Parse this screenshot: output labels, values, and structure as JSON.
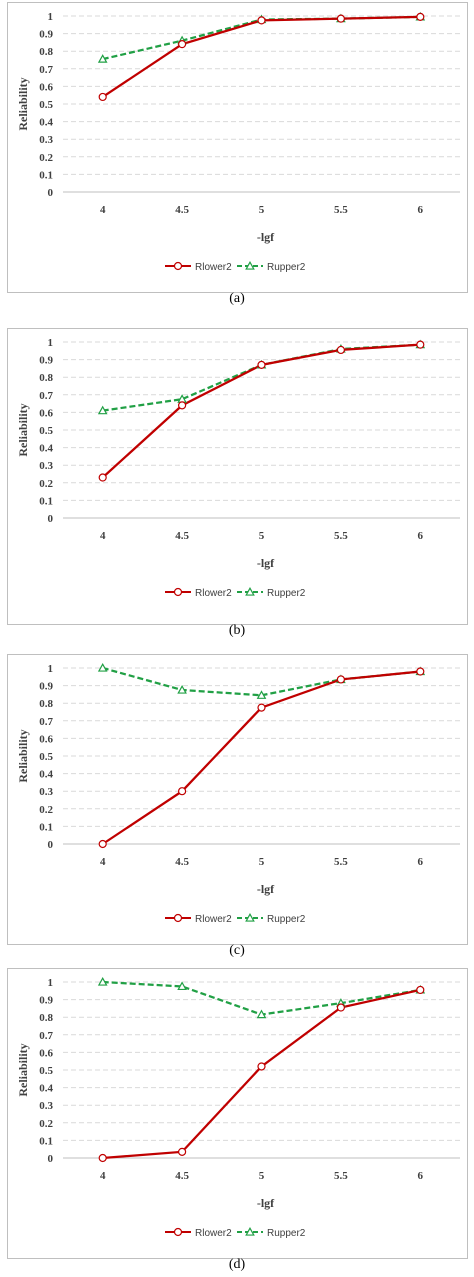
{
  "colors": {
    "rlower": "#c00000",
    "rupper": "#21a045",
    "grid": "#d9d9d9",
    "axis": "#bfbfbf",
    "text": "#404040"
  },
  "chart_data": [
    {
      "type": "line",
      "panel_label": "(a)",
      "xlabel": "-lgf",
      "ylabel": "Reliability",
      "categories": [
        "4",
        "4.5",
        "5",
        "5.5",
        "6"
      ],
      "yticks": [
        "0",
        "0.1",
        "0.2",
        "0.3",
        "0.4",
        "0.5",
        "0.6",
        "0.7",
        "0.8",
        "0.9",
        "1"
      ],
      "ylim": [
        0,
        1
      ],
      "grid": true,
      "legend_position": "bottom",
      "series": [
        {
          "name": "Rlower2",
          "values": [
            0.54,
            0.84,
            0.975,
            0.985,
            0.995
          ],
          "style": "solid",
          "marker": "circle"
        },
        {
          "name": "Rupper2",
          "values": [
            0.755,
            0.86,
            0.98,
            0.985,
            0.995
          ],
          "style": "dashed",
          "marker": "triangle"
        }
      ]
    },
    {
      "type": "line",
      "panel_label": "(b)",
      "xlabel": "-lgf",
      "ylabel": "Reliability",
      "categories": [
        "4",
        "4.5",
        "5",
        "5.5",
        "6"
      ],
      "yticks": [
        "0",
        "0.1",
        "0.2",
        "0.3",
        "0.4",
        "0.5",
        "0.6",
        "0.7",
        "0.8",
        "0.9",
        "1"
      ],
      "ylim": [
        0,
        1
      ],
      "grid": true,
      "legend_position": "bottom",
      "series": [
        {
          "name": "Rlower2",
          "values": [
            0.23,
            0.64,
            0.87,
            0.955,
            0.985
          ],
          "style": "solid",
          "marker": "circle"
        },
        {
          "name": "Rupper2",
          "values": [
            0.61,
            0.675,
            0.87,
            0.96,
            0.985
          ],
          "style": "dashed",
          "marker": "triangle"
        }
      ]
    },
    {
      "type": "line",
      "panel_label": "(c)",
      "xlabel": "-lgf",
      "ylabel": "Reliability",
      "categories": [
        "4",
        "4.5",
        "5",
        "5.5",
        "6"
      ],
      "yticks": [
        "0",
        "0.1",
        "0.2",
        "0.3",
        "0.4",
        "0.5",
        "0.6",
        "0.7",
        "0.8",
        "0.9",
        "1"
      ],
      "ylim": [
        0,
        1
      ],
      "grid": true,
      "legend_position": "bottom",
      "series": [
        {
          "name": "Rlower2",
          "values": [
            0.0,
            0.3,
            0.775,
            0.935,
            0.98
          ],
          "style": "solid",
          "marker": "circle"
        },
        {
          "name": "Rupper2",
          "values": [
            1.0,
            0.875,
            0.845,
            0.935,
            0.98
          ],
          "style": "dashed",
          "marker": "triangle"
        }
      ]
    },
    {
      "type": "line",
      "panel_label": "(d)",
      "xlabel": "-lgf",
      "ylabel": "Reliability",
      "categories": [
        "4",
        "4.5",
        "5",
        "5.5",
        "6"
      ],
      "yticks": [
        "0",
        "0.1",
        "0.2",
        "0.3",
        "0.4",
        "0.5",
        "0.6",
        "0.7",
        "0.8",
        "0.9",
        "1"
      ],
      "ylim": [
        0,
        1
      ],
      "grid": true,
      "legend_position": "bottom",
      "series": [
        {
          "name": "Rlower2",
          "values": [
            0.0,
            0.035,
            0.52,
            0.855,
            0.955
          ],
          "style": "solid",
          "marker": "circle"
        },
        {
          "name": "Rupper2",
          "values": [
            1.0,
            0.975,
            0.815,
            0.88,
            0.955
          ],
          "style": "dashed",
          "marker": "triangle"
        }
      ]
    }
  ]
}
